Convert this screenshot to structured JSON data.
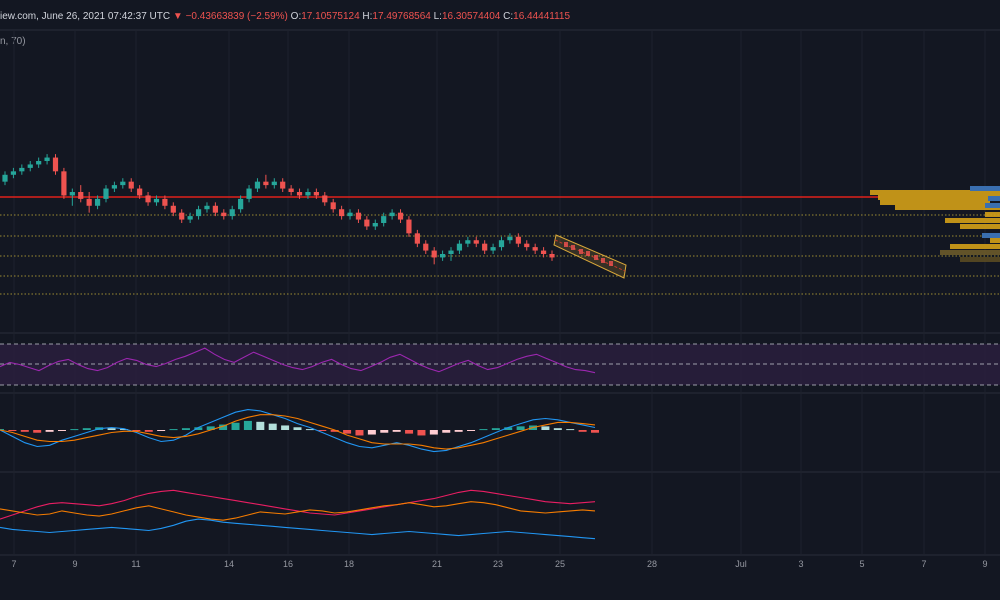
{
  "header": {
    "source_text": "iew.com, June 26, 2021 07:42:37 UTC",
    "change_arrow": "▼",
    "change_text": "−0.43663839 (−2.59%)",
    "o_label": "O:",
    "o_value": "17.10575124",
    "h_label": "H:",
    "h_value": "17.49768564",
    "l_label": "L:",
    "l_value": "16.30574404",
    "c_label": "C:",
    "c_value": "16.44441115"
  },
  "indicator_label": "n, 70)",
  "colors": {
    "background": "#131722",
    "up": "#26a69a",
    "down": "#ef5350",
    "resistance": "#e0201b",
    "dotted": "#c9b23a",
    "channel": "#d9a83a",
    "rsi": "#9c27b0",
    "rsi_band": "#2a1f3d",
    "macd": "#2196f3",
    "signal": "#f57c00",
    "hist_up": "#26a69a",
    "hist_down": "#ef5350",
    "line1": "#e91e63",
    "line2": "#f57c00",
    "line3": "#2196f3",
    "volume_profile": "#d4a017",
    "volume_profile_blue": "#3a6fb0"
  },
  "chart_data": {
    "type": "line",
    "x_axis": {
      "ticks": [
        "7",
        "9",
        "11",
        "14",
        "16",
        "18",
        "21",
        "23",
        "25",
        "28",
        "Jul",
        "3",
        "5",
        "7",
        "9"
      ]
    },
    "price": {
      "ohlc_sample": [
        [
          15.0,
          15.3,
          14.9,
          15.2
        ],
        [
          15.2,
          15.4,
          15.1,
          15.3
        ],
        [
          15.3,
          15.5,
          15.2,
          15.4
        ],
        [
          15.4,
          15.6,
          15.3,
          15.5
        ],
        [
          15.5,
          15.7,
          15.4,
          15.6
        ],
        [
          15.6,
          15.8,
          15.5,
          15.7
        ],
        [
          15.7,
          15.8,
          15.2,
          15.3
        ],
        [
          15.3,
          15.4,
          14.5,
          14.6
        ],
        [
          14.6,
          14.8,
          14.3,
          14.7
        ],
        [
          14.7,
          14.9,
          14.4,
          14.5
        ],
        [
          14.5,
          14.7,
          14.1,
          14.3
        ],
        [
          14.3,
          14.6,
          14.2,
          14.5
        ],
        [
          14.5,
          14.9,
          14.4,
          14.8
        ],
        [
          14.8,
          15.0,
          14.7,
          14.9
        ],
        [
          14.9,
          15.1,
          14.8,
          15.0
        ],
        [
          15.0,
          15.1,
          14.7,
          14.8
        ],
        [
          14.8,
          14.9,
          14.5,
          14.6
        ],
        [
          14.6,
          14.7,
          14.3,
          14.4
        ],
        [
          14.4,
          14.6,
          14.3,
          14.5
        ],
        [
          14.5,
          14.6,
          14.2,
          14.3
        ],
        [
          14.3,
          14.4,
          14.0,
          14.1
        ],
        [
          14.1,
          14.2,
          13.8,
          13.9
        ],
        [
          13.9,
          14.1,
          13.8,
          14.0
        ],
        [
          14.0,
          14.3,
          13.9,
          14.2
        ],
        [
          14.2,
          14.4,
          14.1,
          14.3
        ],
        [
          14.3,
          14.4,
          14.0,
          14.1
        ],
        [
          14.1,
          14.2,
          13.9,
          14.0
        ],
        [
          14.0,
          14.3,
          13.9,
          14.2
        ],
        [
          14.2,
          14.6,
          14.1,
          14.5
        ],
        [
          14.5,
          14.9,
          14.4,
          14.8
        ],
        [
          14.8,
          15.1,
          14.7,
          15.0
        ],
        [
          15.0,
          15.2,
          14.8,
          14.9
        ],
        [
          14.9,
          15.1,
          14.8,
          15.0
        ],
        [
          15.0,
          15.1,
          14.7,
          14.8
        ],
        [
          14.8,
          14.9,
          14.6,
          14.7
        ],
        [
          14.7,
          14.8,
          14.5,
          14.6
        ],
        [
          14.6,
          14.8,
          14.5,
          14.7
        ],
        [
          14.7,
          14.8,
          14.5,
          14.6
        ],
        [
          14.6,
          14.7,
          14.3,
          14.4
        ],
        [
          14.4,
          14.5,
          14.1,
          14.2
        ],
        [
          14.2,
          14.3,
          13.9,
          14.0
        ],
        [
          14.0,
          14.2,
          13.9,
          14.1
        ],
        [
          14.1,
          14.2,
          13.8,
          13.9
        ],
        [
          13.9,
          14.0,
          13.6,
          13.7
        ],
        [
          13.7,
          13.9,
          13.6,
          13.8
        ],
        [
          13.8,
          14.1,
          13.7,
          14.0
        ],
        [
          14.0,
          14.2,
          13.9,
          14.1
        ],
        [
          14.1,
          14.2,
          13.8,
          13.9
        ],
        [
          13.9,
          14.0,
          13.4,
          13.5
        ],
        [
          13.5,
          13.6,
          13.1,
          13.2
        ],
        [
          13.2,
          13.3,
          12.9,
          13.0
        ],
        [
          13.0,
          13.1,
          12.6,
          12.8
        ],
        [
          12.8,
          13.0,
          12.7,
          12.9
        ],
        [
          12.9,
          13.1,
          12.7,
          13.0
        ],
        [
          13.0,
          13.3,
          12.9,
          13.2
        ],
        [
          13.2,
          13.4,
          13.1,
          13.3
        ],
        [
          13.3,
          13.4,
          13.1,
          13.2
        ],
        [
          13.2,
          13.3,
          12.9,
          13.0
        ],
        [
          13.0,
          13.2,
          12.9,
          13.1
        ],
        [
          13.1,
          13.4,
          13.0,
          13.3
        ],
        [
          13.3,
          13.5,
          13.2,
          13.4
        ],
        [
          13.4,
          13.5,
          13.1,
          13.2
        ],
        [
          13.2,
          13.3,
          13.0,
          13.1
        ],
        [
          13.1,
          13.2,
          12.9,
          13.0
        ],
        [
          13.0,
          13.1,
          12.8,
          12.9
        ],
        [
          12.9,
          13.0,
          12.7,
          12.8
        ]
      ],
      "resistance_level_y": 0.0,
      "y_range": [
        12.0,
        16.5
      ]
    },
    "rsi": {
      "values": [
        48,
        52,
        50,
        47,
        44,
        49,
        53,
        55,
        50,
        46,
        44,
        47,
        52,
        56,
        54,
        50,
        48,
        51,
        55,
        58,
        62,
        66,
        60,
        55,
        52,
        57,
        62,
        58,
        54,
        50,
        47,
        45,
        48,
        52,
        55,
        50,
        46,
        44,
        48,
        52,
        57,
        60,
        55,
        50,
        46,
        43,
        47,
        51,
        54,
        49,
        45,
        47,
        51,
        55,
        58,
        60,
        56,
        52,
        48,
        45,
        44,
        42
      ],
      "range": [
        0,
        100
      ],
      "upper": 70,
      "mid": 50,
      "lower": 30
    },
    "macd": {
      "hist": [
        0.1,
        -0.1,
        -0.2,
        -0.3,
        -0.2,
        -0.1,
        0.1,
        0.2,
        0.3,
        0.2,
        0.1,
        -0.1,
        -0.2,
        -0.1,
        0.1,
        0.2,
        0.3,
        0.4,
        0.6,
        0.8,
        1.0,
        0.9,
        0.7,
        0.5,
        0.3,
        0.1,
        -0.1,
        -0.2,
        -0.4,
        -0.6,
        -0.5,
        -0.3,
        -0.2,
        -0.4,
        -0.6,
        -0.5,
        -0.3,
        -0.2,
        -0.1,
        0.1,
        0.2,
        0.3,
        0.4,
        0.5,
        0.4,
        0.2,
        0.1,
        -0.2,
        -0.3
      ],
      "macd": [
        0.0,
        -0.5,
        -1.0,
        -1.3,
        -1.2,
        -0.8,
        -0.5,
        -0.2,
        0.1,
        0.2,
        0.1,
        -0.2,
        -0.6,
        -0.9,
        -0.8,
        -0.4,
        0.2,
        0.6,
        1.0,
        1.4,
        1.6,
        1.5,
        1.2,
        0.9,
        0.5,
        0.2,
        -0.2,
        -0.6,
        -1.0,
        -1.3,
        -1.4,
        -1.2,
        -1.0,
        -1.2,
        -1.5,
        -1.7,
        -1.6,
        -1.3,
        -1.0,
        -0.6,
        -0.2,
        0.2,
        0.5,
        0.8,
        0.9,
        0.8,
        0.6,
        0.4,
        0.2
      ],
      "signal": [
        0.0,
        -0.2,
        -0.5,
        -0.8,
        -0.9,
        -0.9,
        -0.8,
        -0.6,
        -0.4,
        -0.2,
        -0.1,
        -0.1,
        -0.3,
        -0.5,
        -0.6,
        -0.5,
        -0.3,
        0.0,
        0.3,
        0.7,
        1.0,
        1.2,
        1.2,
        1.1,
        0.9,
        0.6,
        0.3,
        0.0,
        -0.4,
        -0.7,
        -1.0,
        -1.1,
        -1.1,
        -1.1,
        -1.2,
        -1.4,
        -1.5,
        -1.4,
        -1.2,
        -1.0,
        -0.7,
        -0.4,
        -0.1,
        0.2,
        0.4,
        0.6,
        0.6,
        0.5,
        0.4
      ],
      "range": [
        -2.2,
        2.2
      ]
    },
    "dmi": {
      "series": [
        {
          "values": [
            30,
            34,
            38,
            42,
            45,
            46,
            45,
            44,
            43,
            45,
            48,
            52,
            55,
            57,
            58,
            56,
            54,
            52,
            50,
            48,
            46,
            44,
            42,
            40,
            38,
            36,
            35,
            34,
            36,
            38,
            40,
            42,
            44,
            46,
            48,
            50,
            53,
            56,
            58,
            57,
            55,
            53,
            51,
            49,
            47,
            46,
            45,
            46,
            47
          ]
        },
        {
          "values": [
            40,
            38,
            36,
            34,
            35,
            38,
            36,
            34,
            33,
            35,
            38,
            41,
            43,
            40,
            37,
            34,
            32,
            30,
            29,
            31,
            34,
            37,
            36,
            35,
            37,
            39,
            38,
            36,
            37,
            39,
            41,
            43,
            44,
            46,
            44,
            42,
            43,
            45,
            47,
            46,
            44,
            41,
            38,
            37,
            36,
            37,
            38,
            39,
            38
          ]
        },
        {
          "values": [
            22,
            20,
            19,
            18,
            17,
            18,
            19,
            20,
            21,
            22,
            21,
            20,
            19,
            21,
            24,
            28,
            30,
            29,
            27,
            26,
            25,
            24,
            23,
            22,
            21,
            20,
            19,
            18,
            17,
            16,
            15,
            16,
            17,
            18,
            17,
            16,
            15,
            14,
            15,
            16,
            17,
            18,
            17,
            16,
            15,
            14,
            13,
            12,
            11
          ]
        }
      ],
      "range": [
        0,
        70
      ]
    }
  }
}
